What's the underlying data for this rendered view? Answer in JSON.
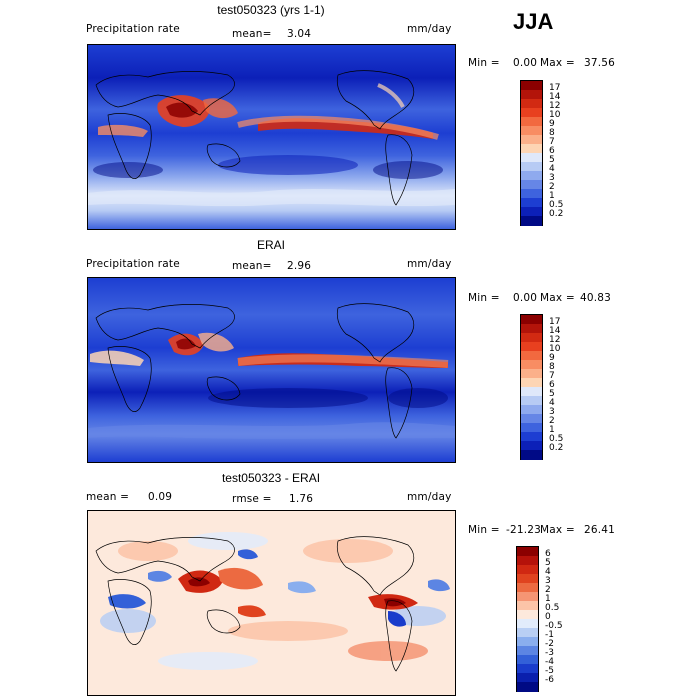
{
  "season": "JJA",
  "panels": [
    {
      "title": "test050323 (yrs 1-1)",
      "left_label": "Precipitation rate",
      "mean_label": "mean=",
      "mean_value": "3.04",
      "units": "mm/day",
      "min_label": "Min =",
      "min_value": "0.00",
      "max_label": "Max =",
      "max_value": "37.56",
      "colorbar": {
        "levels": [
          "17",
          "14",
          "12",
          "10",
          "9",
          "8",
          "7",
          "6",
          "5",
          "4",
          "3",
          "2",
          "1",
          "0.5",
          "0.2"
        ],
        "colors": [
          "#8b0000",
          "#b3140a",
          "#d22a12",
          "#e8401f",
          "#f2693f",
          "#f88d63",
          "#fbb08a",
          "#fdd5b4",
          "#dfe8fa",
          "#b7cbf4",
          "#8faaee",
          "#6686e6",
          "#3e63de",
          "#1d3ed2",
          "#0c20b8",
          "#000a86"
        ]
      }
    },
    {
      "title": "ERAI",
      "left_label": "Precipitation rate",
      "mean_label": "mean=",
      "mean_value": "2.96",
      "units": "mm/day",
      "min_label": "Min =",
      "min_value": "0.00",
      "max_label": "Max =",
      "max_value": "40.83",
      "colorbar": {
        "levels": [
          "17",
          "14",
          "12",
          "10",
          "9",
          "8",
          "7",
          "6",
          "5",
          "4",
          "3",
          "2",
          "1",
          "0.5",
          "0.2"
        ],
        "colors": [
          "#8b0000",
          "#b3140a",
          "#d22a12",
          "#e8401f",
          "#f2693f",
          "#f88d63",
          "#fbb08a",
          "#fdd5b4",
          "#dfe8fa",
          "#b7cbf4",
          "#8faaee",
          "#6686e6",
          "#3e63de",
          "#1d3ed2",
          "#0c20b8",
          "#000a86"
        ]
      }
    },
    {
      "title": "test050323 - ERAI",
      "left_label": "mean =",
      "mean_label": "",
      "mean_value": "0.09",
      "rmse_label": "rmse =",
      "rmse_value": "1.76",
      "units": "mm/day",
      "min_label": "Min =",
      "min_value": "-21.23",
      "max_label": "Max =",
      "max_value": "26.41",
      "colorbar": {
        "levels": [
          "6",
          "5",
          "4",
          "3",
          "2",
          "1",
          "0.5",
          "0",
          "-0.5",
          "-1",
          "-2",
          "-3",
          "-4",
          "-5",
          "-6"
        ],
        "colors": [
          "#8b0000",
          "#b5120a",
          "#d02812",
          "#e0431f",
          "#ec6a41",
          "#f59574",
          "#fcc4a8",
          "#fde9dc",
          "#e2ecfb",
          "#b9cff4",
          "#8aaeee",
          "#5c85e3",
          "#3360d8",
          "#1a3ccb",
          "#0a1fad",
          "#000a84"
        ]
      }
    }
  ],
  "chart_data": [
    {
      "type": "heatmap",
      "title": "test050323 (yrs 1-1)",
      "subtitle": "Precipitation rate",
      "units": "mm/day",
      "stats": {
        "mean": 3.04,
        "min": 0.0,
        "max": 37.56
      },
      "contour_levels": [
        0.2,
        0.5,
        1,
        2,
        3,
        4,
        5,
        6,
        7,
        8,
        9,
        10,
        12,
        14,
        17
      ]
    },
    {
      "type": "heatmap",
      "title": "ERAI",
      "subtitle": "Precipitation rate",
      "units": "mm/day",
      "stats": {
        "mean": 2.96,
        "min": 0.0,
        "max": 40.83
      },
      "contour_levels": [
        0.2,
        0.5,
        1,
        2,
        3,
        4,
        5,
        6,
        7,
        8,
        9,
        10,
        12,
        14,
        17
      ]
    },
    {
      "type": "heatmap",
      "title": "test050323 - ERAI",
      "units": "mm/day",
      "stats": {
        "mean": 0.09,
        "rmse": 1.76,
        "min": -21.23,
        "max": 26.41
      },
      "contour_levels": [
        -6,
        -5,
        -4,
        -3,
        -2,
        -1,
        -0.5,
        0,
        0.5,
        1,
        2,
        3,
        4,
        5,
        6
      ]
    }
  ]
}
